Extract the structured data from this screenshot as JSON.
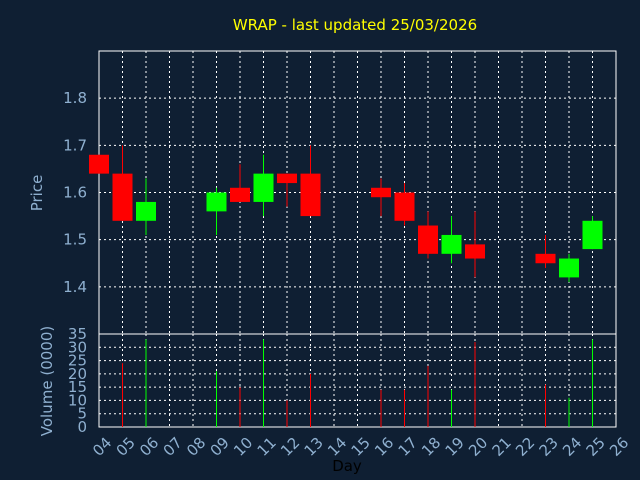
{
  "chart_data": {
    "type": "candlestick",
    "title": "WRAP - last updated 25/03/2026",
    "xlabel": "Day",
    "x_ticks": [
      "04",
      "05",
      "06",
      "07",
      "08",
      "09",
      "10",
      "11",
      "12",
      "13",
      "14",
      "15",
      "16",
      "17",
      "18",
      "19",
      "20",
      "21",
      "22",
      "23",
      "24",
      "25",
      "26"
    ],
    "price_panel": {
      "ylabel": "Price",
      "ylim": [
        1.3,
        1.9
      ],
      "yticks": [
        1.4,
        1.5,
        1.6,
        1.7,
        1.8
      ],
      "ytick_labels": [
        "1.4",
        "1.5",
        "1.6",
        "1.7",
        "1.8"
      ],
      "grid": true
    },
    "volume_panel": {
      "ylabel": "Volume (0000)",
      "ylim": [
        0,
        35
      ],
      "yticks": [
        0,
        5,
        10,
        15,
        20,
        25,
        30,
        35
      ],
      "ytick_labels": [
        "0",
        "5",
        "10",
        "15",
        "20",
        "25",
        "30",
        "35"
      ],
      "grid": true
    },
    "up_color": "#00ff00",
    "down_color": "#ff0000",
    "candles": [
      {
        "day": "04",
        "open": 1.68,
        "high": 1.68,
        "low": 1.64,
        "close": 1.64
      },
      {
        "day": "05",
        "open": 1.64,
        "high": 1.7,
        "low": 1.54,
        "close": 1.54
      },
      {
        "day": "06",
        "open": 1.54,
        "high": 1.63,
        "low": 1.51,
        "close": 1.58
      },
      {
        "day": "09",
        "open": 1.56,
        "high": 1.61,
        "low": 1.51,
        "close": 1.6
      },
      {
        "day": "10",
        "open": 1.61,
        "high": 1.66,
        "low": 1.58,
        "close": 1.58
      },
      {
        "day": "11",
        "open": 1.58,
        "high": 1.68,
        "low": 1.55,
        "close": 1.64
      },
      {
        "day": "12",
        "open": 1.64,
        "high": 1.64,
        "low": 1.57,
        "close": 1.62
      },
      {
        "day": "13",
        "open": 1.64,
        "high": 1.7,
        "low": 1.55,
        "close": 1.55
      },
      {
        "day": "16",
        "open": 1.61,
        "high": 1.63,
        "low": 1.55,
        "close": 1.59
      },
      {
        "day": "17",
        "open": 1.6,
        "high": 1.62,
        "low": 1.53,
        "close": 1.54
      },
      {
        "day": "18",
        "open": 1.53,
        "high": 1.56,
        "low": 1.46,
        "close": 1.47
      },
      {
        "day": "19",
        "open": 1.47,
        "high": 1.55,
        "low": 1.45,
        "close": 1.51
      },
      {
        "day": "20",
        "open": 1.49,
        "high": 1.56,
        "low": 1.42,
        "close": 1.46
      },
      {
        "day": "23",
        "open": 1.47,
        "high": 1.51,
        "low": 1.44,
        "close": 1.45
      },
      {
        "day": "24",
        "open": 1.42,
        "high": 1.47,
        "low": 1.41,
        "close": 1.46
      },
      {
        "day": "25",
        "open": 1.48,
        "high": 1.55,
        "low": 1.48,
        "close": 1.54
      }
    ],
    "volume": [
      {
        "day": "05",
        "value": 24,
        "direction": "down"
      },
      {
        "day": "06",
        "value": 33,
        "direction": "up"
      },
      {
        "day": "09",
        "value": 21,
        "direction": "up"
      },
      {
        "day": "10",
        "value": 15,
        "direction": "down"
      },
      {
        "day": "11",
        "value": 33,
        "direction": "up"
      },
      {
        "day": "12",
        "value": 10,
        "direction": "down"
      },
      {
        "day": "13",
        "value": 20,
        "direction": "down"
      },
      {
        "day": "16",
        "value": 14,
        "direction": "down"
      },
      {
        "day": "17",
        "value": 14,
        "direction": "down"
      },
      {
        "day": "18",
        "value": 23,
        "direction": "down"
      },
      {
        "day": "19",
        "value": 14,
        "direction": "up"
      },
      {
        "day": "20",
        "value": 32,
        "direction": "down"
      },
      {
        "day": "23",
        "value": 16,
        "direction": "down"
      },
      {
        "day": "24",
        "value": 11,
        "direction": "up"
      },
      {
        "day": "25",
        "value": 33,
        "direction": "up"
      }
    ]
  }
}
